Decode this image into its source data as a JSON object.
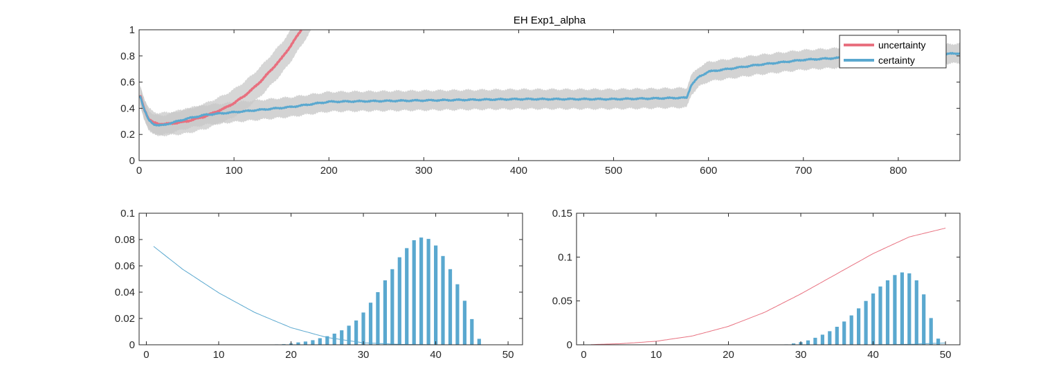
{
  "colors": {
    "uncertainty": "#e8707f",
    "certainty": "#5aa8cf",
    "band": "#c8c8c8",
    "axis": "#262626"
  },
  "chart_data": [
    {
      "type": "line",
      "title": "EH  Exp1_alpha",
      "xlim": [
        0,
        865
      ],
      "ylim": [
        0,
        1
      ],
      "xticks": [
        0,
        100,
        200,
        300,
        400,
        500,
        600,
        700,
        800
      ],
      "yticks": [
        0,
        0.2,
        0.4,
        0.6,
        0.8,
        1
      ],
      "ytick_labels": [
        "0",
        "0.2",
        "0.4",
        "0.6",
        "0.8",
        "1"
      ],
      "legend": {
        "location": "top-right",
        "entries": [
          "uncertainty",
          "certainty"
        ]
      },
      "series": [
        {
          "name": "uncertainty",
          "color": "#e8707f",
          "band": 0.1,
          "x": [
            1,
            5,
            10,
            15,
            20,
            30,
            40,
            50,
            60,
            70,
            80,
            90,
            100,
            110,
            120,
            130,
            140,
            150,
            160,
            170,
            171
          ],
          "y": [
            0.5,
            0.4,
            0.32,
            0.29,
            0.28,
            0.28,
            0.29,
            0.3,
            0.32,
            0.34,
            0.37,
            0.4,
            0.44,
            0.49,
            0.55,
            0.62,
            0.7,
            0.78,
            0.88,
            0.99,
            1.0
          ]
        },
        {
          "name": "certainty",
          "color": "#5aa8cf",
          "band": 0.075,
          "x": [
            1,
            5,
            10,
            15,
            20,
            25,
            30,
            40,
            50,
            70,
            100,
            130,
            160,
            200,
            250,
            300,
            350,
            400,
            450,
            500,
            540,
            570,
            577,
            582,
            590,
            600,
            620,
            650,
            700,
            750,
            800,
            865
          ],
          "y": [
            0.5,
            0.4,
            0.31,
            0.28,
            0.27,
            0.27,
            0.28,
            0.3,
            0.32,
            0.35,
            0.37,
            0.39,
            0.41,
            0.45,
            0.455,
            0.46,
            0.465,
            0.47,
            0.47,
            0.47,
            0.475,
            0.48,
            0.48,
            0.58,
            0.64,
            0.68,
            0.7,
            0.73,
            0.77,
            0.79,
            0.8,
            0.82
          ]
        }
      ]
    },
    {
      "type": "bar",
      "xlim": [
        -1,
        52
      ],
      "ylim": [
        0,
        0.1
      ],
      "xticks": [
        0,
        10,
        20,
        30,
        40,
        50
      ],
      "yticks": [
        0,
        0.02,
        0.04,
        0.06,
        0.08,
        0.1
      ],
      "ytick_labels": [
        "0",
        "0.02",
        "0.04",
        "0.06",
        "0.08",
        "0.1"
      ],
      "bar_color": "#5aa8cf",
      "bars": {
        "x": [
          18,
          19,
          20,
          21,
          22,
          23,
          24,
          25,
          26,
          27,
          28,
          29,
          30,
          31,
          32,
          33,
          34,
          35,
          36,
          37,
          38,
          39,
          40,
          41,
          42,
          43,
          44,
          45,
          46
        ],
        "y": [
          0.0003,
          0.0005,
          0.001,
          0.0018,
          0.0025,
          0.0035,
          0.005,
          0.0065,
          0.0085,
          0.011,
          0.0145,
          0.0185,
          0.0245,
          0.032,
          0.04,
          0.049,
          0.0575,
          0.0665,
          0.0735,
          0.0795,
          0.0815,
          0.0805,
          0.0755,
          0.0675,
          0.0575,
          0.046,
          0.0335,
          0.0195,
          0.0045
        ]
      },
      "lines": [
        {
          "color": "#5aa8cf",
          "x": [
            1,
            5,
            10,
            15,
            20,
            25,
            30,
            35,
            40,
            45,
            50
          ],
          "y": [
            0.0748,
            0.0575,
            0.0395,
            0.0245,
            0.013,
            0.0055,
            0.0015,
            0.0003,
            0.0,
            0.0,
            0.0
          ]
        },
        {
          "color": "#e8707f",
          "x": [
            1,
            10,
            20,
            30,
            40,
            50
          ],
          "y": [
            0.0,
            0.0,
            0.0,
            0.0,
            0.0,
            0.0
          ]
        }
      ]
    },
    {
      "type": "bar",
      "xlim": [
        -1,
        52
      ],
      "ylim": [
        0,
        0.15
      ],
      "xticks": [
        0,
        10,
        20,
        30,
        40,
        50
      ],
      "yticks": [
        0,
        0.05,
        0.1,
        0.15
      ],
      "ytick_labels": [
        "0",
        "0.05",
        "0.1",
        "0.15"
      ],
      "bar_color": "#5aa8cf",
      "bars": {
        "x": [
          28,
          29,
          30,
          31,
          32,
          33,
          34,
          35,
          36,
          37,
          38,
          39,
          40,
          41,
          42,
          43,
          44,
          45,
          46,
          47,
          48,
          49
        ],
        "y": [
          0.0005,
          0.0015,
          0.003,
          0.005,
          0.008,
          0.0115,
          0.0155,
          0.0205,
          0.0265,
          0.0335,
          0.0415,
          0.05,
          0.0585,
          0.0665,
          0.0735,
          0.0795,
          0.0825,
          0.0815,
          0.0735,
          0.0575,
          0.0305,
          0.007
        ]
      },
      "lines": [
        {
          "color": "#e8707f",
          "x": [
            1,
            5,
            10,
            15,
            20,
            25,
            30,
            35,
            40,
            45,
            50
          ],
          "y": [
            0.0002,
            0.0012,
            0.004,
            0.01,
            0.021,
            0.037,
            0.058,
            0.081,
            0.104,
            0.123,
            0.133
          ]
        },
        {
          "color": "#5aa8cf",
          "x": [
            1,
            10,
            20,
            30,
            40,
            45,
            48,
            50
          ],
          "y": [
            0.0,
            0.0,
            0.0,
            0.0,
            0.0,
            0.0005,
            0.0015,
            0.002
          ]
        }
      ]
    }
  ]
}
